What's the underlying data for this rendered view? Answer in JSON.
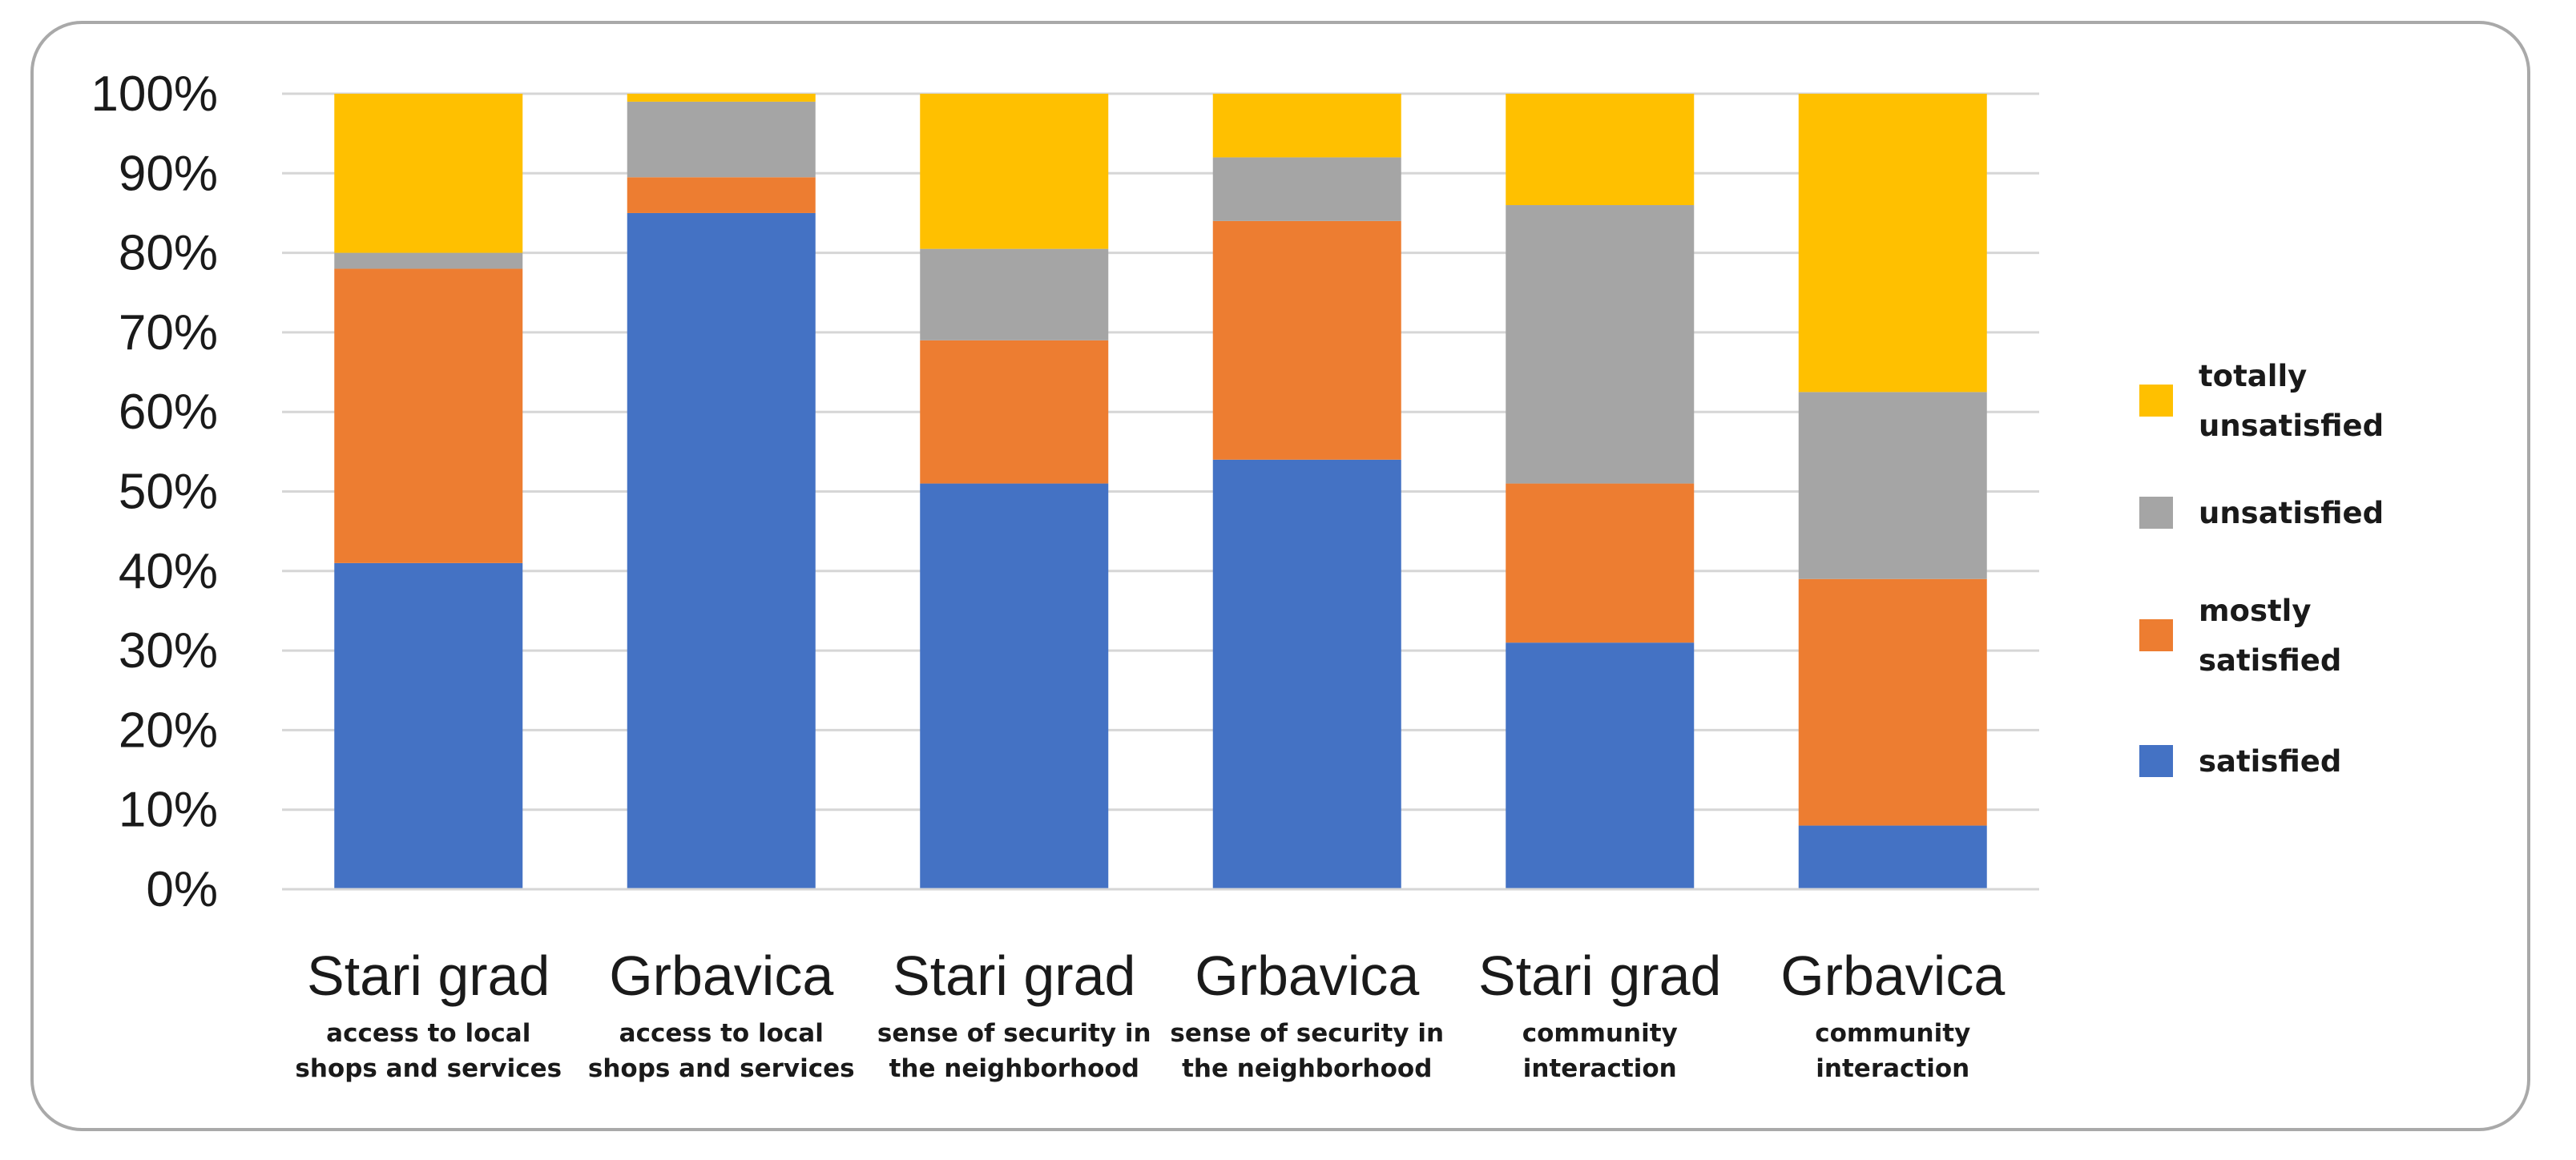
{
  "chart_data": {
    "type": "bar",
    "stacked": true,
    "ylim": [
      0,
      100
    ],
    "ytick_step": 10,
    "ytick_format": "{v}%",
    "grid": true,
    "legend_position": "right",
    "categories": [
      {
        "main": "Stari grad",
        "sub": [
          "access to local",
          "shops and services"
        ]
      },
      {
        "main": "Grbavica",
        "sub": [
          "access to local",
          "shops and services"
        ]
      },
      {
        "main": "Stari grad",
        "sub": [
          "sense of security in",
          "the neighborhood"
        ]
      },
      {
        "main": "Grbavica",
        "sub": [
          "sense of security in",
          "the neighborhood"
        ]
      },
      {
        "main": "Stari grad",
        "sub": [
          "community",
          "interaction"
        ]
      },
      {
        "main": "Grbavica",
        "sub": [
          "community",
          "interaction"
        ]
      }
    ],
    "series": [
      {
        "name": "satisfied",
        "legend_lines": [
          "satisfied"
        ],
        "color": "#4472C4",
        "values": [
          41,
          85,
          51,
          54,
          31,
          8
        ]
      },
      {
        "name": "mostly satisfied",
        "legend_lines": [
          "mostly",
          "satisfied"
        ],
        "color": "#ED7D31",
        "values": [
          37,
          4.5,
          18,
          30,
          20,
          31
        ]
      },
      {
        "name": "unsatisfied",
        "legend_lines": [
          "unsatisfied"
        ],
        "color": "#A5A5A5",
        "values": [
          2,
          9.5,
          11.5,
          8,
          35,
          23.5
        ]
      },
      {
        "name": "totally unsatisfied",
        "legend_lines": [
          "totally",
          "unsatisfied"
        ],
        "color": "#FFC000",
        "values": [
          20,
          1,
          19.5,
          8,
          14,
          37.5
        ]
      }
    ]
  }
}
